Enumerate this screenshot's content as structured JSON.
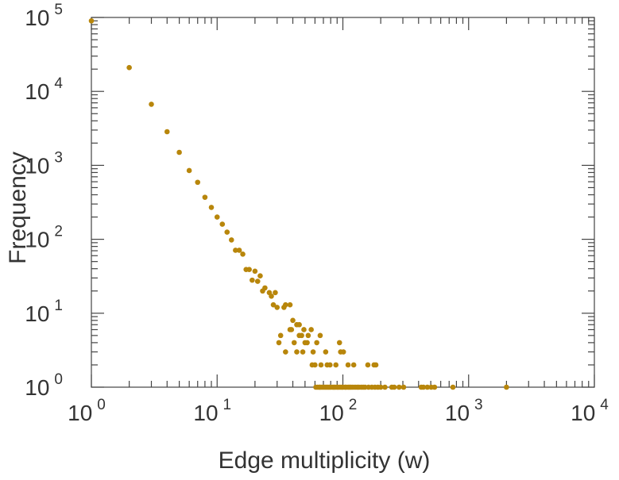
{
  "chart_data": {
    "type": "scatter",
    "title": "",
    "xlabel": "Edge multiplicity (w)",
    "ylabel": "Frequency",
    "xscale": "log",
    "yscale": "log",
    "xlim": [
      1,
      10000
    ],
    "ylim": [
      1,
      100000
    ],
    "tick_base": "10",
    "x_tick_exponents": [
      "0",
      "1",
      "2",
      "3",
      "4"
    ],
    "y_tick_exponents": [
      "0",
      "1",
      "2",
      "3",
      "4",
      "5"
    ],
    "grid": false,
    "marker_color": "#b8860b",
    "points": [
      [
        1,
        90000
      ],
      [
        2,
        21000
      ],
      [
        3,
        6700
      ],
      [
        4,
        2850
      ],
      [
        5,
        1500
      ],
      [
        6,
        850
      ],
      [
        7,
        590
      ],
      [
        8,
        370
      ],
      [
        9,
        270
      ],
      [
        10,
        200
      ],
      [
        11,
        160
      ],
      [
        12,
        125
      ],
      [
        13,
        98
      ],
      [
        14,
        71
      ],
      [
        15,
        71
      ],
      [
        16,
        63
      ],
      [
        17,
        39
      ],
      [
        18,
        39
      ],
      [
        19,
        28
      ],
      [
        20,
        37
      ],
      [
        21,
        27
      ],
      [
        22,
        32
      ],
      [
        23,
        20
      ],
      [
        24,
        22
      ],
      [
        26,
        19
      ],
      [
        27,
        17
      ],
      [
        28,
        13
      ],
      [
        29,
        19
      ],
      [
        30,
        12
      ],
      [
        31,
        4
      ],
      [
        32,
        5
      ],
      [
        34,
        12
      ],
      [
        35,
        13
      ],
      [
        35,
        3
      ],
      [
        38,
        13
      ],
      [
        38,
        6
      ],
      [
        39,
        6
      ],
      [
        40,
        8
      ],
      [
        41,
        4
      ],
      [
        43,
        7
      ],
      [
        43,
        3
      ],
      [
        45,
        7
      ],
      [
        45,
        5
      ],
      [
        47,
        5
      ],
      [
        48,
        3
      ],
      [
        49,
        6
      ],
      [
        50,
        4
      ],
      [
        52,
        4
      ],
      [
        53,
        5
      ],
      [
        56,
        6
      ],
      [
        58,
        3
      ],
      [
        62,
        4
      ],
      [
        66,
        5
      ],
      [
        73,
        3
      ],
      [
        94,
        4
      ],
      [
        96,
        3
      ],
      [
        101,
        3
      ],
      [
        57,
        2
      ],
      [
        60,
        2
      ],
      [
        67,
        2
      ],
      [
        75,
        2
      ],
      [
        79,
        2
      ],
      [
        88,
        2
      ],
      [
        110,
        2
      ],
      [
        122,
        2
      ],
      [
        158,
        2
      ],
      [
        177,
        2
      ],
      [
        183,
        2
      ],
      [
        61,
        1
      ],
      [
        63,
        1
      ],
      [
        65,
        1
      ],
      [
        66,
        1
      ],
      [
        68,
        1
      ],
      [
        70,
        1
      ],
      [
        72,
        1
      ],
      [
        74,
        1
      ],
      [
        76,
        1
      ],
      [
        78,
        1
      ],
      [
        80,
        1
      ],
      [
        83,
        1
      ],
      [
        85,
        1
      ],
      [
        87,
        1
      ],
      [
        90,
        1
      ],
      [
        92,
        1
      ],
      [
        95,
        1
      ],
      [
        98,
        1
      ],
      [
        100,
        1
      ],
      [
        104,
        1
      ],
      [
        106,
        1
      ],
      [
        110,
        1
      ],
      [
        113,
        1
      ],
      [
        116,
        1
      ],
      [
        120,
        1
      ],
      [
        125,
        1
      ],
      [
        130,
        1
      ],
      [
        134,
        1
      ],
      [
        140,
        1
      ],
      [
        145,
        1
      ],
      [
        150,
        1
      ],
      [
        160,
        1
      ],
      [
        170,
        1
      ],
      [
        180,
        1
      ],
      [
        190,
        1
      ],
      [
        200,
        1
      ],
      [
        216,
        1
      ],
      [
        245,
        1
      ],
      [
        256,
        1
      ],
      [
        280,
        1
      ],
      [
        304,
        1
      ],
      [
        420,
        1
      ],
      [
        437,
        1
      ],
      [
        470,
        1
      ],
      [
        504,
        1
      ],
      [
        536,
        1
      ],
      [
        750,
        1
      ],
      [
        2000,
        1
      ]
    ]
  }
}
